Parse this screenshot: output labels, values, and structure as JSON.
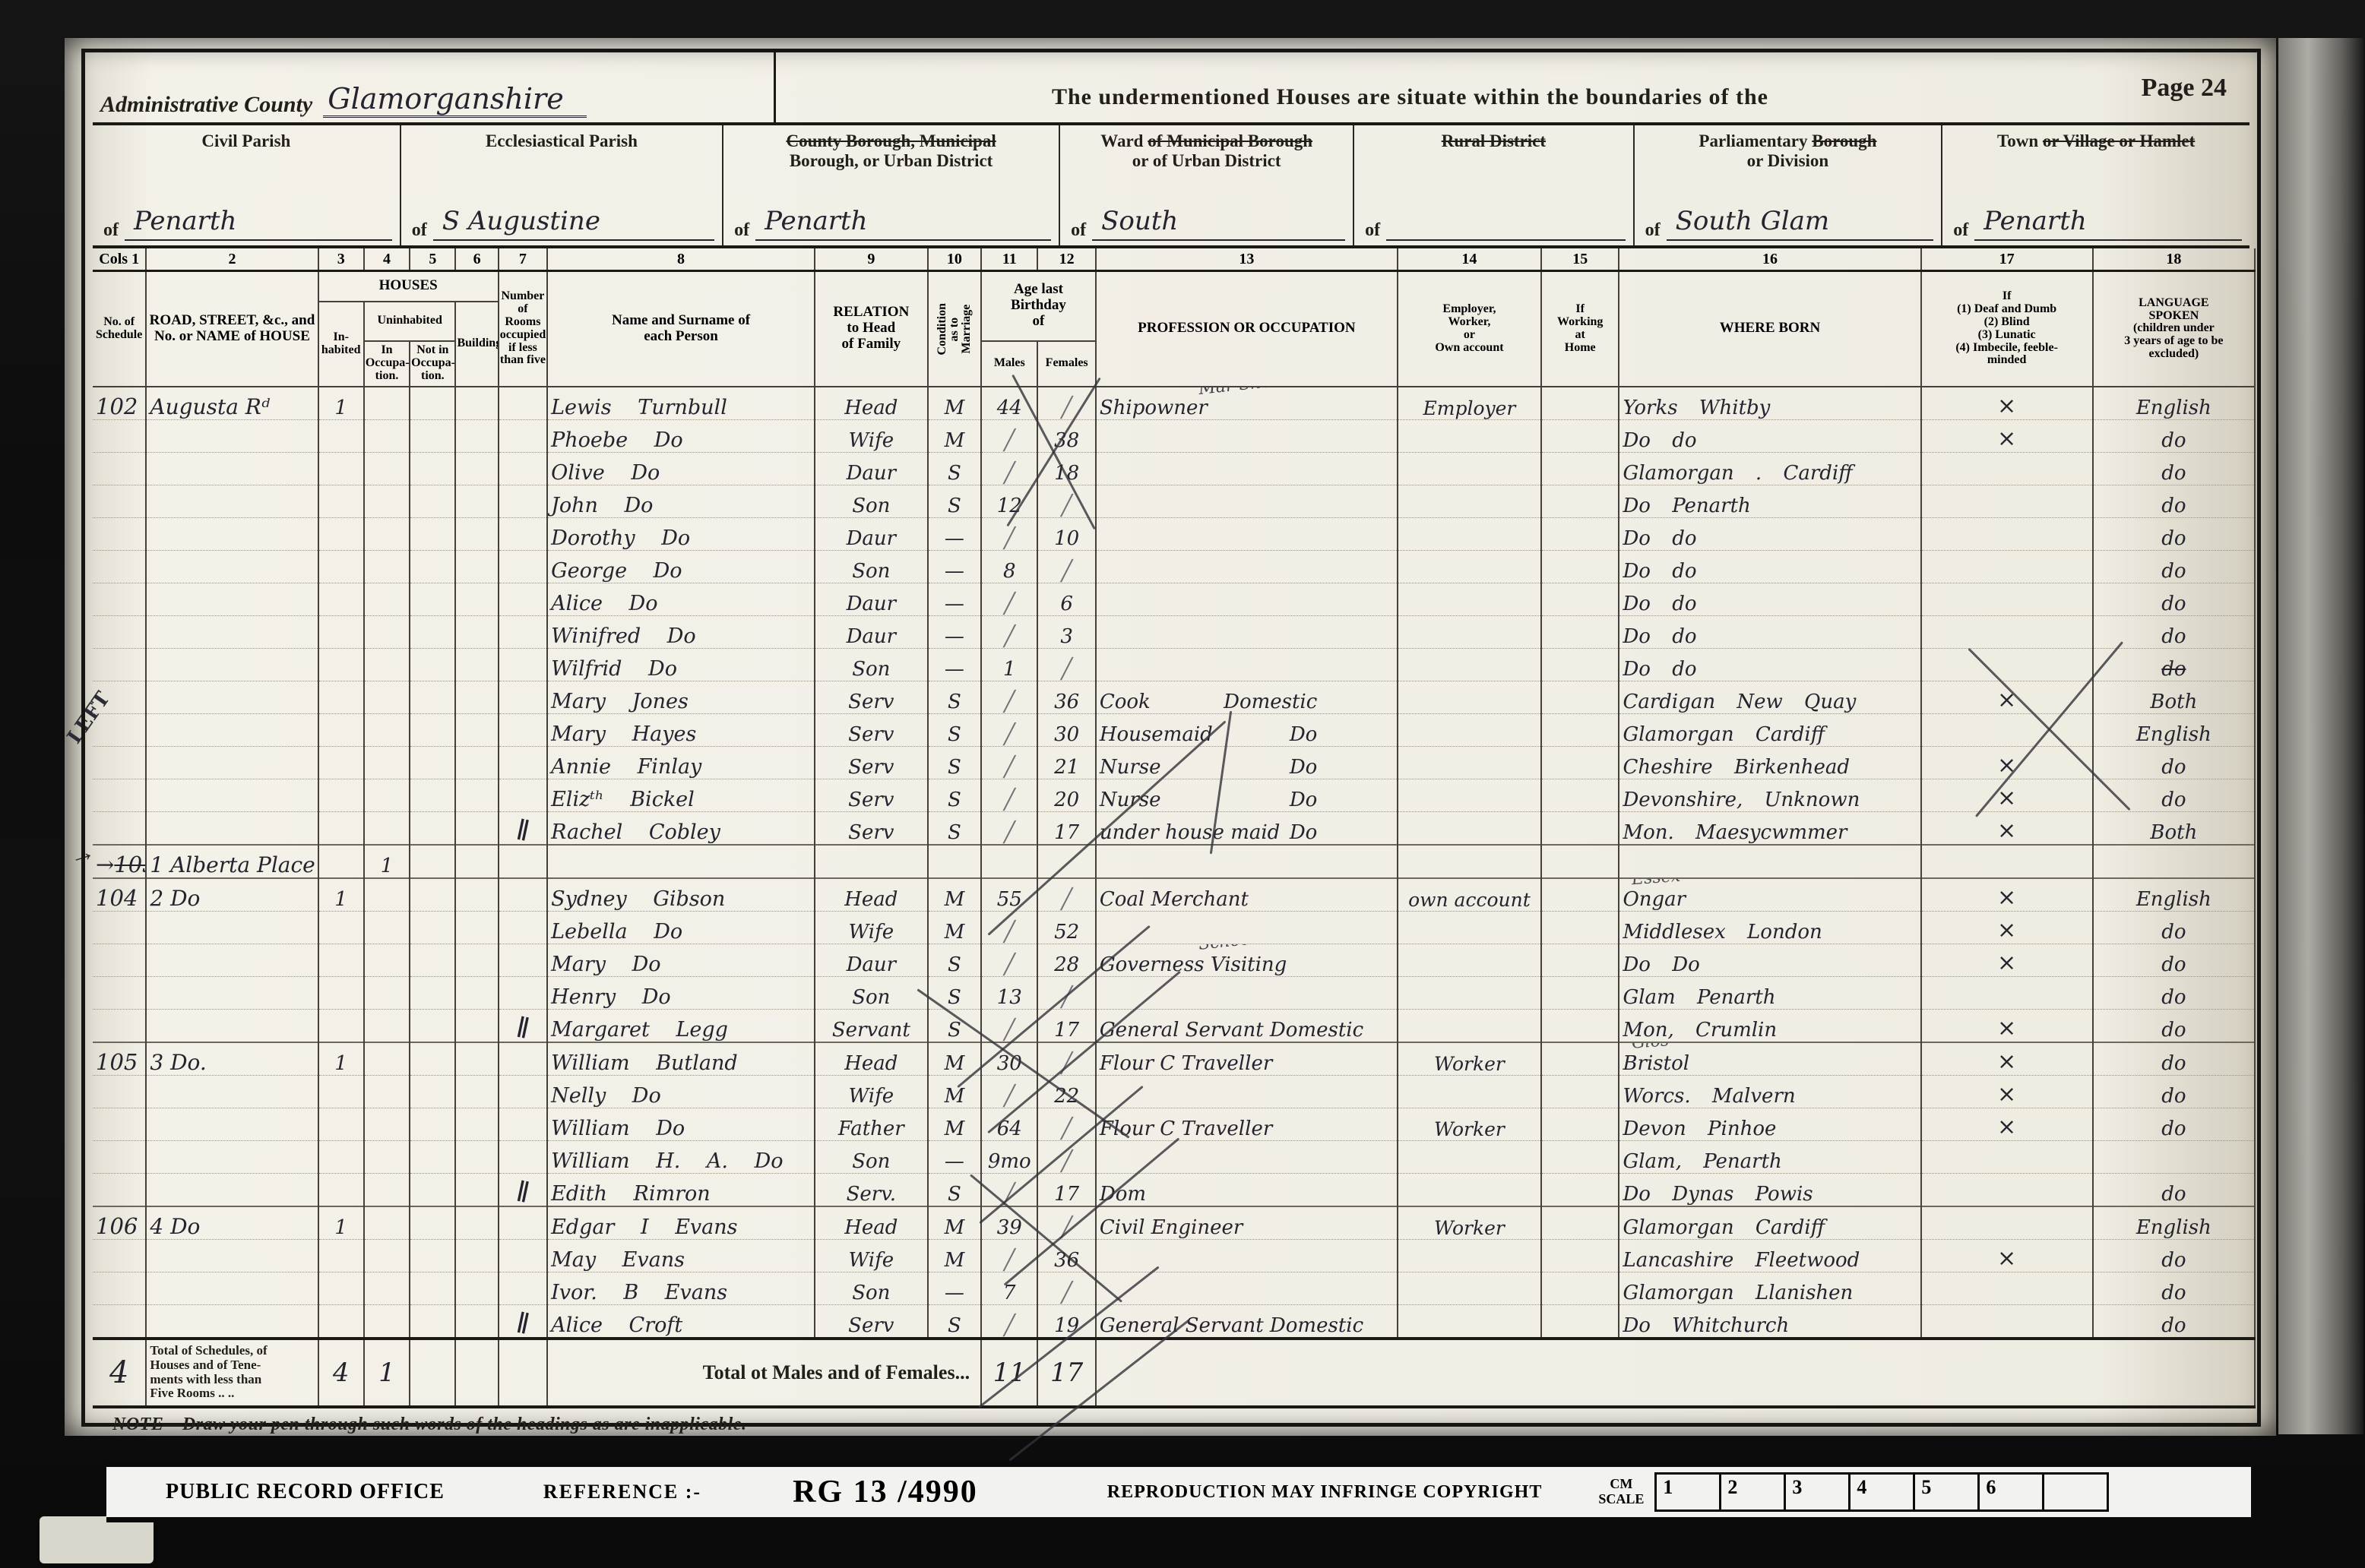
{
  "page": {
    "admin_county_label": "Administrative County",
    "admin_county_value": "Glamorganshire",
    "undermentioned": "The undermentioned Houses are situate within the boundaries of the",
    "page_label": "Page 24",
    "note": "NOTE—Draw your pen through such words of the headings as are inapplicable.",
    "margin_note": "LEFT",
    "margin_arrow": "→"
  },
  "districts": [
    {
      "title_parts": [
        {
          "t": "Civil Parish",
          "s": false
        }
      ],
      "of": "of",
      "value": "Penarth",
      "flex": 1.05
    },
    {
      "title_parts": [
        {
          "t": "Ecclesiastical Parish",
          "s": false
        }
      ],
      "of": "of",
      "value": "S Augustine",
      "flex": 1.1
    },
    {
      "title_parts": [
        {
          "t": "County Borough, Municipal",
          "s": true
        },
        {
          "t": "\nBorough, or Urban District",
          "s": false
        }
      ],
      "of": "of",
      "value": "Penarth",
      "flex": 1.15
    },
    {
      "title_parts": [
        {
          "t": "Ward ",
          "s": false
        },
        {
          "t": "of Municipal Borough",
          "s": true
        },
        {
          "t": "\nor of Urban District",
          "s": false
        }
      ],
      "of": "of",
      "value": "South",
      "flex": 1.0
    },
    {
      "title_parts": [
        {
          "t": "Rural District",
          "s": true
        }
      ],
      "of": "of",
      "value": "",
      "flex": 0.95
    },
    {
      "title_parts": [
        {
          "t": "Parliamentary ",
          "s": false
        },
        {
          "t": "Borough",
          "s": true
        },
        {
          "t": "\nor Division",
          "s": false
        }
      ],
      "of": "of",
      "value": "South Glam",
      "flex": 1.05
    },
    {
      "title_parts": [
        {
          "t": "Town ",
          "s": false
        },
        {
          "t": "or Village or Hamlet",
          "s": true
        }
      ],
      "of": "of",
      "value": "Penarth",
      "flex": 1.05
    }
  ],
  "table_headers": {
    "cols": [
      "Cols 1",
      "2",
      "3",
      "4",
      "5",
      "6",
      "7",
      "8",
      "9",
      "10",
      "11",
      "12",
      "13",
      "14",
      "15",
      "16",
      "17",
      "18"
    ],
    "schedule": "No. of\nSchedule",
    "road": "ROAD, STREET, &c., and\nNo. or NAME of HOUSE",
    "houses": "HOUSES",
    "inhabited": "In-\nhabited",
    "uninhabited": "Uninhabited",
    "in_occupation": "In\nOccupa-\ntion.",
    "not_in_occupation": "Not in\nOccupa-\ntion.",
    "building": "Building.",
    "rooms": "Number\nof Rooms\noccupied\nif less\nthan five",
    "name": "Name and Surname of\neach Person",
    "relation": "RELATION\nto Head\nof Family",
    "condition": "Condition\nas to\nMarriage",
    "age": "Age last\nBirthday\nof",
    "males": "Males",
    "females": "Females",
    "profession": "PROFESSION OR OCCUPATION",
    "employer": "Employer,\nWorker,\nor\nOwn account",
    "home": "If\nWorking\nat\nHome",
    "born": "WHERE BORN",
    "infirmity": "If\n(1) Deaf and Dumb\n(2) Blind\n(3) Lunatic\n(4) Imbecile, feeble-\nminded",
    "language": "LANGUAGE\nSPOKEN\n(children under\n3 years of age to be\nexcluded)"
  },
  "rows": [
    {
      "s": "102",
      "a": "Augusta Rᵈ",
      "i": "1",
      "n": "Lewis Turnbull",
      "r": "Head",
      "c": "M",
      "am": "44",
      "o": "Shipowner",
      "on": "Mar Short",
      "e": "Employer",
      "b": "Yorks Whitby",
      "x": "×",
      "l": "English"
    },
    {
      "n": "Phoebe Do",
      "r": "Wife",
      "c": "M",
      "af": "38",
      "b": "Do do",
      "x": "×",
      "l": "do"
    },
    {
      "n": "Olive Do",
      "r": "Daur",
      "c": "S",
      "af": "18",
      "b": "Glamorgan . Cardiff",
      "l": "do"
    },
    {
      "n": "John Do",
      "r": "Son",
      "c": "S",
      "am": "12",
      "b": "Do Penarth",
      "l": "do"
    },
    {
      "n": "Dorothy Do",
      "r": "Daur",
      "c": "—",
      "af": "10",
      "b": "Do do",
      "l": "do"
    },
    {
      "n": "George Do",
      "r": "Son",
      "c": "—",
      "am": "8",
      "b": "Do do",
      "l": "do"
    },
    {
      "n": "Alice Do",
      "r": "Daur",
      "c": "—",
      "af": "6",
      "b": "Do do",
      "l": "do"
    },
    {
      "n": "Winifred Do",
      "r": "Daur",
      "c": "—",
      "af": "3",
      "b": "Do do",
      "l": "do"
    },
    {
      "n": "Wilfrid Do",
      "r": "Son",
      "c": "—",
      "am": "1",
      "b": "Do do",
      "l": "do",
      "ls": true
    },
    {
      "n": "Mary Jones",
      "r": "Serv",
      "c": "S",
      "af": "36",
      "o": "Cook",
      "o2": "Domestic",
      "b": "Cardigan New Quay",
      "x": "×",
      "l": "Both"
    },
    {
      "n": "Mary Hayes",
      "r": "Serv",
      "c": "S",
      "af": "30",
      "o": "Housemaid",
      "o2": "Do",
      "b": "Glamorgan Cardiff",
      "l": "English"
    },
    {
      "n": "Annie Finlay",
      "r": "Serv",
      "c": "S",
      "af": "21",
      "o": "Nurse",
      "o2": "Do",
      "b": "Cheshire Birkenhead",
      "x": "×",
      "l": "do"
    },
    {
      "n": "Elizᵗʰ Bickel",
      "r": "Serv",
      "c": "S",
      "af": "20",
      "o": "Nurse",
      "o2": "Do",
      "b": "Devonshire, Unknown",
      "x": "×",
      "l": "do"
    },
    {
      "n": "Rachel Cobley",
      "r": "Serv",
      "c": "S",
      "af": "17",
      "o": "under house maid",
      "o2": "Do",
      "b": "Mon. Maesycwmmer",
      "x": "×",
      "l": "Both",
      "rm": "∥"
    },
    {
      "s": "103",
      "ss": true,
      "ar": true,
      "a": "1 Alberta Place",
      "u": "1",
      "sep": true
    },
    {
      "s": "104",
      "a": "2 Do",
      "i": "1",
      "n": "Sydney Gibson",
      "r": "Head",
      "c": "M",
      "am": "55",
      "o": "Coal Merchant",
      "e": "own account",
      "b": "Ongar",
      "bn": "Essex",
      "x": "×",
      "l": "English",
      "sep": true
    },
    {
      "n": "Lebella Do",
      "r": "Wife",
      "c": "M",
      "af": "52",
      "b": "Middlesex London",
      "x": "×",
      "l": "do"
    },
    {
      "n": "Mary Do",
      "r": "Daur",
      "c": "S",
      "af": "28",
      "o": "Governess Visiting",
      "on": "School",
      "b": "Do Do",
      "x": "×",
      "l": "do"
    },
    {
      "n": "Henry Do",
      "r": "Son",
      "c": "S",
      "am": "13",
      "b": "Glam Penarth",
      "l": "do"
    },
    {
      "n": "Margaret Legg",
      "r": "Servant",
      "c": "S",
      "af": "17",
      "o": "General Servant Domestic",
      "b": "Mon, Crumlin",
      "x": "×",
      "l": "do",
      "rm": "∥"
    },
    {
      "s": "105",
      "a": "3 Do.",
      "i": "1",
      "n": "William Butland",
      "r": "Head",
      "c": "M",
      "am": "30",
      "o": "Flour C Traveller",
      "e": "Worker",
      "b": "Bristol",
      "bn": "Glos",
      "x": "×",
      "l": "do",
      "sep": true
    },
    {
      "n": "Nelly Do",
      "r": "Wife",
      "c": "M",
      "af": "22",
      "b": "Worcs. Malvern",
      "x": "×",
      "l": "do"
    },
    {
      "n": "William Do",
      "r": "Father",
      "c": "M",
      "am": "64",
      "o": "Flour C Traveller",
      "e": "Worker",
      "b": "Devon Pinhoe",
      "x": "×",
      "l": "do"
    },
    {
      "n": "William H. A. Do",
      "r": "Son",
      "c": "—",
      "am": "9mo",
      "b": "Glam, Penarth"
    },
    {
      "n": "Edith Rimron",
      "r": "Serv.",
      "c": "S",
      "af": "17",
      "o": "Dom",
      "b": "Do Dynas Powis",
      "l": "do",
      "rm": "∥"
    },
    {
      "s": "106",
      "a": "4 Do",
      "i": "1",
      "n": "Edgar I Evans",
      "r": "Head",
      "c": "M",
      "am": "39",
      "o": "Civil Engineer",
      "e": "Worker",
      "b": "Glamorgan Cardiff",
      "l": "English",
      "sep": true
    },
    {
      "n": "May Evans",
      "r": "Wife",
      "c": "M",
      "af": "36",
      "b": "Lancashire Fleetwood",
      "x": "×",
      "l": "do"
    },
    {
      "n": "Ivor. B Evans",
      "r": "Son",
      "c": "—",
      "am": "7",
      "b": "Glamorgan Llanishen",
      "l": "do"
    },
    {
      "n": "Alice Croft",
      "r": "Serv",
      "c": "S",
      "af": "19",
      "o": "General Servant Domestic",
      "b": "Do Whitchurch",
      "l": "do",
      "rm": "∥"
    }
  ],
  "totals": {
    "schedule": "4",
    "label": "Total of Schedules, of\nHouses and of Tene-\nments with less than\nFive Rooms ..    ..",
    "inhabited": "4",
    "uninhabited": "1",
    "males_label": "Total ot Males and of Females...",
    "males": "11",
    "females": "17"
  },
  "footer": {
    "office": "PUBLIC RECORD OFFICE",
    "reference_label": "REFERENCE :-",
    "reference": "RG 13 /4990",
    "copyright": "REPRODUCTION MAY INFRINGE COPYRIGHT",
    "scale_label": "CM\nSCALE",
    "scale_cells": [
      "1",
      "2",
      "3",
      "4",
      "5",
      "6",
      ""
    ]
  }
}
